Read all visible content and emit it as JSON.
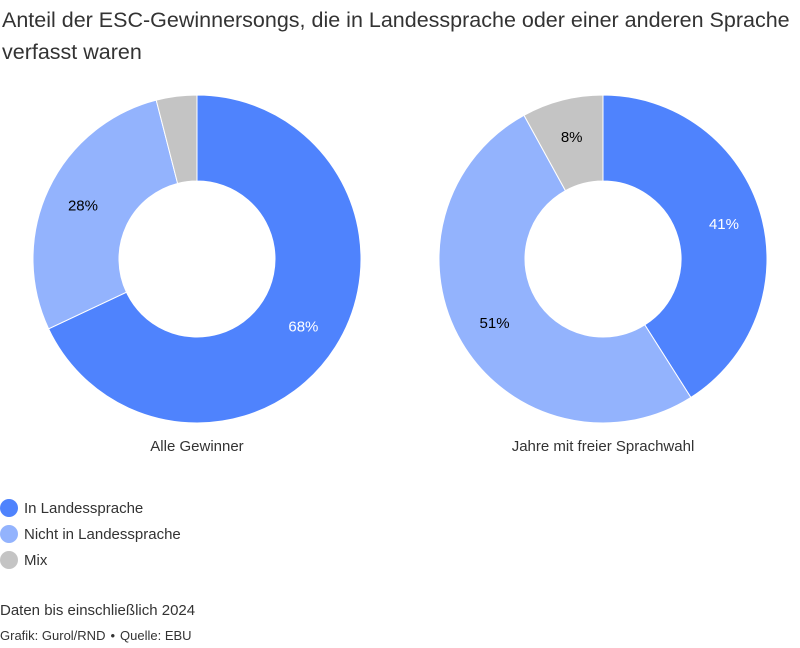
{
  "title": "Anteil der ESC-Gewinnersongs, die in Landessprache oder einer anderen Sprache verfasst waren",
  "colors": {
    "in_landessprache": "#4f83fd",
    "nicht_in_landessprache": "#93b3fd",
    "mix": "#c4c4c4",
    "text": "#333333"
  },
  "chart_data": [
    {
      "type": "pie",
      "donut": true,
      "label": "Alle Gewinner",
      "slices": [
        {
          "name": "In Landessprache",
          "value": 68,
          "display": "68%",
          "color": "#4f83fd",
          "text_color": "#ffffff"
        },
        {
          "name": "Nicht in Landessprache",
          "value": 28,
          "display": "28%",
          "color": "#93b3fd",
          "text_color": "#000000"
        },
        {
          "name": "Mix",
          "value": 4,
          "display": "",
          "color": "#c4c4c4",
          "text_color": "#000000"
        }
      ]
    },
    {
      "type": "pie",
      "donut": true,
      "label": "Jahre mit freier Sprachwahl",
      "slices": [
        {
          "name": "In Landessprache",
          "value": 41,
          "display": "41%",
          "color": "#4f83fd",
          "text_color": "#ffffff"
        },
        {
          "name": "Nicht in Landessprache",
          "value": 51,
          "display": "51%",
          "color": "#93b3fd",
          "text_color": "#000000"
        },
        {
          "name": "Mix",
          "value": 8,
          "display": "8%",
          "color": "#c4c4c4",
          "text_color": "#000000"
        }
      ]
    }
  ],
  "legend": {
    "items": [
      {
        "label": "In Landessprache",
        "color": "#4f83fd"
      },
      {
        "label": "Nicht in Landessprache",
        "color": "#93b3fd"
      },
      {
        "label": "Mix",
        "color": "#c4c4c4"
      }
    ]
  },
  "footer": {
    "note": "Daten bis einschließlich 2024",
    "credit": "Grafik: Gurol/RND",
    "separator": "•",
    "source": "Quelle: EBU"
  }
}
